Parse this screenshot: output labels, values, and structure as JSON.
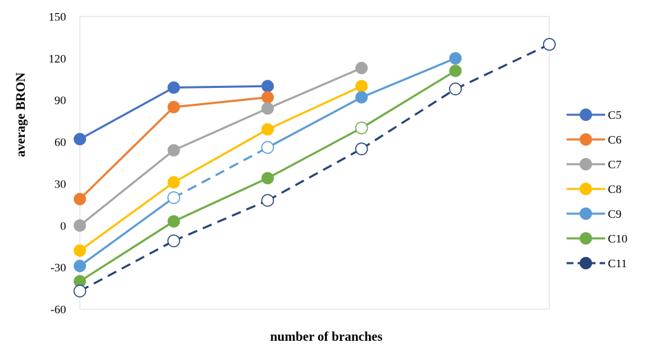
{
  "chart_data": {
    "type": "line",
    "title": "",
    "xlabel": "number of branches",
    "ylabel": "average BRON",
    "ylim": [
      -60,
      150
    ],
    "yticks": [
      -60,
      -30,
      0,
      30,
      60,
      90,
      120,
      150
    ],
    "xlim": [
      0,
      5
    ],
    "x_tick_labels": "none",
    "grid": false,
    "legend_position": "right",
    "series": [
      {
        "name": "C5",
        "color": "#4472C4",
        "dashed": false,
        "x": [
          0,
          1,
          2
        ],
        "values": [
          62,
          99,
          100
        ],
        "hollow": [
          false,
          false,
          false
        ]
      },
      {
        "name": "C6",
        "color": "#ED7D31",
        "dashed": false,
        "x": [
          0,
          1,
          2
        ],
        "values": [
          19,
          85,
          92
        ],
        "hollow": [
          false,
          false,
          false
        ]
      },
      {
        "name": "C7",
        "color": "#A5A5A5",
        "dashed": false,
        "x": [
          0,
          1,
          2,
          3
        ],
        "values": [
          0,
          54,
          84,
          113
        ],
        "hollow": [
          false,
          false,
          false,
          false
        ]
      },
      {
        "name": "C8",
        "color": "#FFC000",
        "dashed": false,
        "x": [
          0,
          1,
          2,
          3
        ],
        "values": [
          -18,
          31,
          69,
          100
        ],
        "hollow": [
          false,
          false,
          false,
          false
        ]
      },
      {
        "name": "C9",
        "color": "#5B9BD5",
        "dashed": false,
        "dashed_segments": [
          1
        ],
        "x": [
          0,
          1,
          2,
          3,
          4
        ],
        "values": [
          -29,
          20,
          56,
          92,
          120
        ],
        "hollow": [
          false,
          true,
          true,
          false,
          false
        ]
      },
      {
        "name": "C10",
        "color": "#70AD47",
        "dashed": false,
        "x": [
          0,
          1,
          2,
          3,
          4
        ],
        "values": [
          -40,
          3,
          34,
          70,
          111
        ],
        "hollow": [
          false,
          false,
          false,
          true,
          false
        ]
      },
      {
        "name": "C11",
        "color": "#264478",
        "dashed": true,
        "x": [
          0,
          1,
          2,
          3,
          4,
          5
        ],
        "values": [
          -47,
          -11,
          18,
          55,
          98,
          130
        ],
        "hollow": [
          true,
          true,
          true,
          true,
          true,
          true
        ]
      }
    ]
  }
}
